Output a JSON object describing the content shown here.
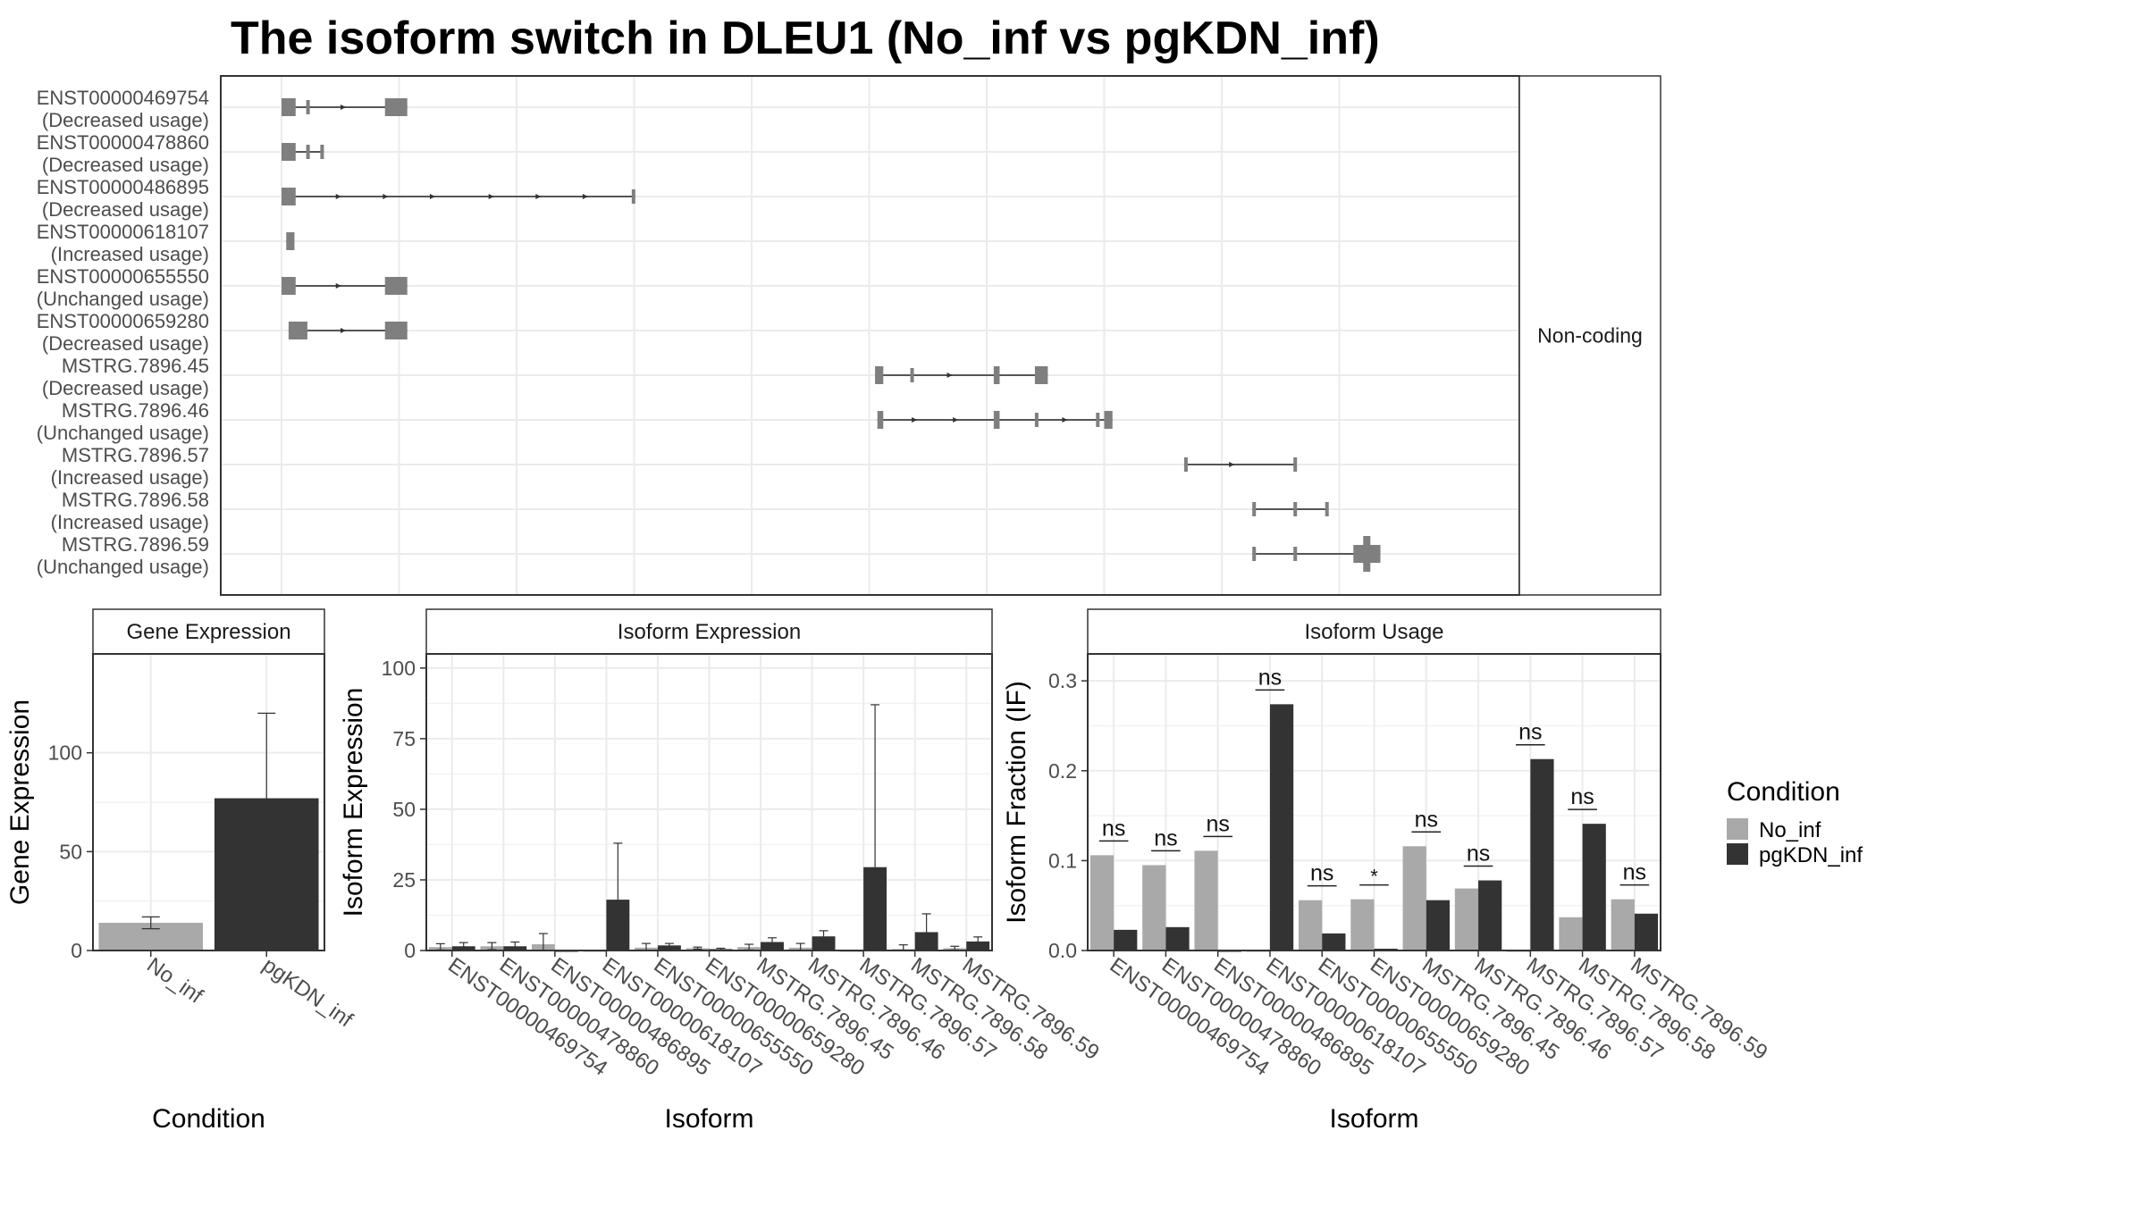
{
  "title": "The isoform switch in DLEU1 (No_inf vs pgKDN_inf)",
  "colors": {
    "no_inf": "#a9a9a9",
    "pgkdn_inf": "#333333",
    "exon": "#7f7f7f",
    "grid": "#ebebeb",
    "panel_border": "#333333",
    "strip_fill": "#ffffff"
  },
  "structure": {
    "strip_label": "Non-coding",
    "isoforms": [
      {
        "id": "ENST00000469754",
        "status": "(Decreased usage)",
        "exons": [
          [
            0.0,
            0.012
          ],
          [
            0.021,
            0.0225
          ],
          [
            0.088,
            0.107
          ]
        ],
        "arrows": [
          0.054
        ]
      },
      {
        "id": "ENST00000478860",
        "status": "(Decreased usage)",
        "exons": [
          [
            0.0,
            0.012
          ],
          [
            0.021,
            0.0225
          ],
          [
            0.033,
            0.036
          ]
        ],
        "arrows": []
      },
      {
        "id": "ENST00000486895",
        "status": "(Decreased usage)",
        "exons": [
          [
            0.0,
            0.012
          ],
          [
            0.298,
            0.301
          ]
        ],
        "arrows": [
          0.05,
          0.09,
          0.13,
          0.18,
          0.22,
          0.26
        ]
      },
      {
        "id": "ENST00000618107",
        "status": "(Increased usage)",
        "exons": [
          [
            0.004,
            0.011
          ]
        ],
        "arrows": []
      },
      {
        "id": "ENST00000655550",
        "status": "(Unchanged usage)",
        "exons": [
          [
            0.0,
            0.012
          ],
          [
            0.088,
            0.107
          ]
        ],
        "arrows": [
          0.05
        ]
      },
      {
        "id": "ENST00000659280",
        "status": "(Decreased usage)",
        "exons": [
          [
            0.006,
            0.022
          ],
          [
            0.088,
            0.107
          ]
        ],
        "arrows": [
          0.054
        ]
      },
      {
        "id": "MSTRG.7896.45",
        "status": "(Decreased usage)",
        "exons": [
          [
            0.505,
            0.512
          ],
          [
            0.535,
            0.537
          ],
          [
            0.606,
            0.611
          ],
          [
            0.641,
            0.652
          ]
        ],
        "arrows": [
          0.57
        ]
      },
      {
        "id": "MSTRG.7896.46",
        "status": "(Unchanged usage)",
        "exons": [
          [
            0.507,
            0.512
          ],
          [
            0.606,
            0.611
          ],
          [
            0.641,
            0.643
          ],
          [
            0.693,
            0.695
          ],
          [
            0.7,
            0.707
          ]
        ],
        "arrows": [
          0.54,
          0.575,
          0.668
        ]
      },
      {
        "id": "MSTRG.7896.57",
        "status": "(Increased usage)",
        "exons": [
          [
            0.768,
            0.77
          ],
          [
            0.861,
            0.863
          ]
        ],
        "arrows": [
          0.81
        ]
      },
      {
        "id": "MSTRG.7896.58",
        "status": "(Increased usage)",
        "exons": [
          [
            0.826,
            0.828
          ],
          [
            0.861,
            0.863
          ],
          [
            0.888,
            0.89
          ]
        ],
        "arrows": []
      },
      {
        "id": "MSTRG.7896.59",
        "status": "(Unchanged usage)",
        "exons": [
          [
            0.826,
            0.828
          ],
          [
            0.861,
            0.863
          ],
          [
            0.912,
            0.935
          ]
        ],
        "arrows": []
      }
    ]
  },
  "chart_data": [
    {
      "type": "bar",
      "title": "Gene Expression",
      "xlabel": "Condition",
      "ylabel": "Gene Expression",
      "categories": [
        "No_inf",
        "pgKDN_inf"
      ],
      "values": [
        14,
        77
      ],
      "error_low": [
        11,
        35
      ],
      "error_high": [
        17,
        120
      ],
      "ylim": [
        0,
        150
      ],
      "yticks": [
        0,
        50,
        100
      ],
      "grid": true
    },
    {
      "type": "bar",
      "title": "Isoform Expression",
      "xlabel": "Isoform",
      "ylabel": "Isoform Expression",
      "categories": [
        "ENST00000469754",
        "ENST00000478860",
        "ENST00000486895",
        "ENST00000618107",
        "ENST00000655550",
        "ENST00000659280",
        "MSTRG.7896.45",
        "MSTRG.7896.46",
        "MSTRG.7896.57",
        "MSTRG.7896.58",
        "MSTRG.7896.59"
      ],
      "series": [
        {
          "name": "No_inf",
          "values": [
            1.2,
            1.5,
            2.2,
            0.0,
            1.0,
            0.8,
            1.2,
            1.0,
            0.0,
            0.5,
            0.8
          ],
          "error_low": [
            0.2,
            0.3,
            0.0,
            0.0,
            0.0,
            0.5,
            0.2,
            0.0,
            0.0,
            0.0,
            0.2
          ],
          "error_high": [
            2.4,
            2.8,
            6.0,
            0.0,
            2.5,
            1.2,
            2.2,
            2.5,
            0.0,
            2.0,
            1.5
          ]
        },
        {
          "name": "pgKDN_inf",
          "values": [
            1.5,
            1.5,
            0.0,
            18.0,
            1.8,
            0.5,
            3.0,
            5.0,
            29.5,
            6.5,
            3.2
          ],
          "error_low": [
            0.5,
            0.5,
            0.0,
            0.0,
            1.0,
            0.2,
            2.0,
            3.0,
            0.0,
            0.0,
            1.0
          ],
          "error_high": [
            2.8,
            3.0,
            0.0,
            38.0,
            2.5,
            0.8,
            4.5,
            7.0,
            87.0,
            13.0,
            4.8
          ]
        }
      ],
      "ylim": [
        0,
        105
      ],
      "yticks": [
        0,
        25,
        50,
        75,
        100
      ],
      "grid": true
    },
    {
      "type": "bar",
      "title": "Isoform Usage",
      "xlabel": "Isoform",
      "ylabel": "Isoform Fraction (IF)",
      "categories": [
        "ENST00000469754",
        "ENST00000478860",
        "ENST00000486895",
        "ENST00000618107",
        "ENST00000655550",
        "ENST00000659280",
        "MSTRG.7896.45",
        "MSTRG.7896.46",
        "MSTRG.7896.57",
        "MSTRG.7896.58",
        "MSTRG.7896.59"
      ],
      "series": [
        {
          "name": "No_inf",
          "values": [
            0.106,
            0.095,
            0.111,
            0.0,
            0.056,
            0.057,
            0.116,
            0.069,
            0.0,
            0.037,
            0.057
          ]
        },
        {
          "name": "pgKDN_inf",
          "values": [
            0.023,
            0.026,
            0.0,
            0.274,
            0.019,
            0.002,
            0.056,
            0.078,
            0.213,
            0.141,
            0.041
          ]
        }
      ],
      "significance": [
        "ns",
        "ns",
        "ns",
        "ns",
        "ns",
        "*",
        "ns",
        "ns",
        "ns",
        "ns",
        "ns"
      ],
      "ylim": [
        0,
        0.33
      ],
      "yticks": [
        0.0,
        0.1,
        0.2,
        0.3
      ],
      "grid": true
    }
  ],
  "legend": {
    "title": "Condition",
    "items": [
      {
        "label": "No_inf",
        "key": "no_inf"
      },
      {
        "label": "pgKDN_inf",
        "key": "pgkdn_inf"
      }
    ]
  }
}
